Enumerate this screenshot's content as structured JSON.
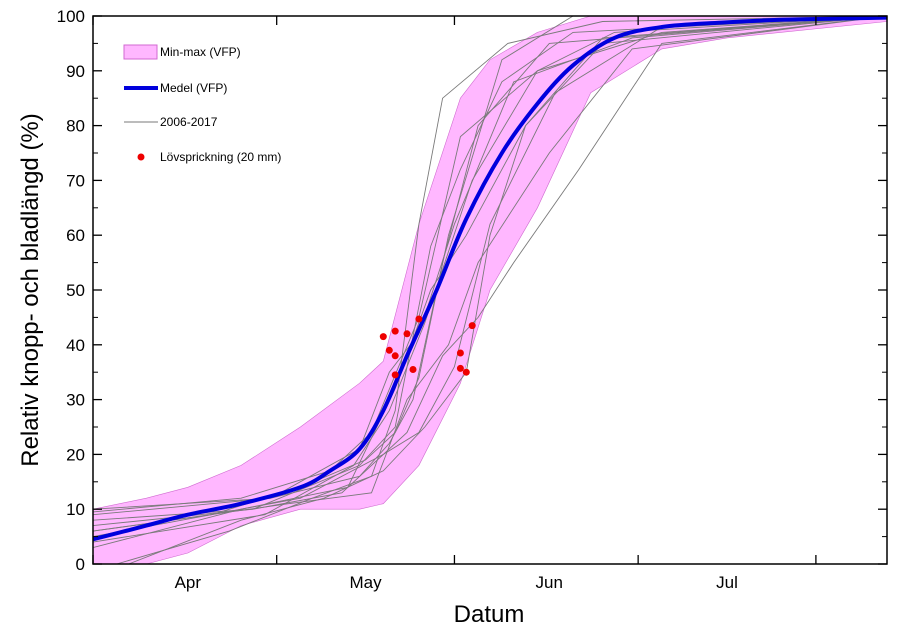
{
  "chart_data": {
    "type": "line",
    "xlabel": "Datum",
    "ylabel": "Relativ knopp- och bladlängd (%)",
    "ylim": [
      0,
      100
    ],
    "xlim": [
      "2000-03-16",
      "2000-07-28"
    ],
    "y_ticks": [
      "0",
      "10",
      "20",
      "30",
      "40",
      "50",
      "60",
      "70",
      "80",
      "90",
      "100"
    ],
    "x_month_ticks": [
      {
        "label": "Apr",
        "date": "2000-04-01"
      },
      {
        "label": "May",
        "date": "2000-05-01"
      },
      {
        "label": "Jun",
        "date": "2000-06-01"
      },
      {
        "label": "Jul",
        "date": "2000-07-01"
      }
    ],
    "x_major_tick_dates": [
      "2000-03-16",
      "2000-04-16",
      "2000-05-16",
      "2000-06-16",
      "2000-07-16"
    ],
    "grid": false,
    "legend_position": "top-left",
    "legend": [
      {
        "label": "Min-max (VFP)",
        "kind": "band"
      },
      {
        "label": "Medel (VFP)",
        "kind": "thick-line"
      },
      {
        "label": "2006-2017",
        "kind": "thin-line"
      },
      {
        "label": "Lövsprickning (20 mm)",
        "kind": "dot"
      }
    ],
    "colors": {
      "band_fill": "#ffb7ff",
      "band_edge": "#d06ad0",
      "mean_line": "#0000dd",
      "year_lines": "#7a7a7a",
      "dots": "#ee0000"
    },
    "band": {
      "x": [
        "2000-03-16",
        "2000-03-25",
        "2000-04-01",
        "2000-04-10",
        "2000-04-20",
        "2000-04-30",
        "2000-05-04",
        "2000-05-10",
        "2000-05-17",
        "2000-05-22",
        "2000-05-30",
        "2000-06-08",
        "2000-06-20",
        "2000-07-01",
        "2000-07-28"
      ],
      "upper": [
        10,
        12,
        14,
        18,
        25,
        33,
        37,
        62,
        85,
        92,
        97,
        100,
        100,
        100,
        100
      ],
      "lower": [
        0,
        0,
        2,
        7,
        10,
        10,
        11,
        18,
        33,
        50,
        65,
        86,
        94,
        96,
        99
      ]
    },
    "mean_series": {
      "name": "Medel (VFP)",
      "x": [
        "2000-03-16",
        "2000-03-25",
        "2000-04-01",
        "2000-04-10",
        "2000-04-20",
        "2000-04-25",
        "2000-04-30",
        "2000-05-04",
        "2000-05-08",
        "2000-05-13",
        "2000-05-18",
        "2000-05-24",
        "2000-05-30",
        "2000-06-05",
        "2000-06-12",
        "2000-06-20",
        "2000-06-30",
        "2000-07-10",
        "2000-07-28"
      ],
      "y": [
        4.5,
        7,
        9,
        11,
        14,
        17,
        21,
        28,
        38,
        50,
        63,
        75,
        84,
        91,
        96,
        98,
        98.8,
        99.3,
        99.7
      ]
    },
    "year_series": [
      {
        "x": [
          "2000-03-16",
          "2000-04-10",
          "2000-04-25",
          "2000-05-02",
          "2000-05-10",
          "2000-05-17",
          "2000-05-30",
          "2000-06-20",
          "2000-07-28"
        ],
        "y": [
          9.5,
          12,
          17,
          24,
          45,
          78,
          90,
          97,
          100
        ]
      },
      {
        "x": [
          "2000-03-16",
          "2000-04-05",
          "2000-04-20",
          "2000-05-01",
          "2000-05-06",
          "2000-05-10",
          "2000-05-15",
          "2000-05-24",
          "2000-06-05",
          "2000-06-15",
          "2000-07-28"
        ],
        "y": [
          6,
          9,
          14,
          19,
          24,
          34,
          60,
          92,
          100,
          100,
          100
        ]
      },
      {
        "x": [
          "2000-03-20",
          "2000-04-08",
          "2000-04-22",
          "2000-05-02",
          "2000-05-06",
          "2000-05-10",
          "2000-05-14",
          "2000-05-25",
          "2000-06-10",
          "2000-07-28"
        ],
        "y": [
          0,
          6,
          12,
          16,
          28,
          62,
          85,
          95,
          99,
          100
        ]
      },
      {
        "x": [
          "2000-03-16",
          "2000-04-10",
          "2000-04-28",
          "2000-05-06",
          "2000-05-12",
          "2000-05-18",
          "2000-05-28",
          "2000-06-10",
          "2000-07-28"
        ],
        "y": [
          3,
          10,
          14,
          32,
          50,
          60,
          80,
          95,
          100
        ]
      },
      {
        "x": [
          "2000-03-16",
          "2000-04-15",
          "2000-04-30",
          "2000-05-05",
          "2000-05-10",
          "2000-05-16",
          "2000-05-26",
          "2000-06-15",
          "2000-07-28"
        ],
        "y": [
          9,
          12,
          21,
          35,
          42,
          62,
          88,
          96,
          100
        ]
      },
      {
        "x": [
          "2000-03-16",
          "2000-04-12",
          "2000-04-27",
          "2000-05-08",
          "2000-05-14",
          "2000-05-20",
          "2000-05-26",
          "2000-06-06",
          "2000-06-20",
          "2000-07-28"
        ],
        "y": [
          7,
          10,
          13,
          24,
          38,
          45,
          55,
          72,
          95,
          100
        ]
      },
      {
        "x": [
          "2000-03-22",
          "2000-04-10",
          "2000-04-24",
          "2000-05-04",
          "2000-05-11",
          "2000-05-18",
          "2000-05-22",
          "2000-05-28",
          "2000-06-10",
          "2000-07-28"
        ],
        "y": [
          0,
          8,
          12,
          17,
          25,
          35,
          60,
          80,
          96,
          100
        ]
      },
      {
        "x": [
          "2000-03-16",
          "2000-04-15",
          "2000-04-30",
          "2000-05-05",
          "2000-05-09",
          "2000-05-14",
          "2000-05-20",
          "2000-06-01",
          "2000-07-28"
        ],
        "y": [
          10,
          12,
          16,
          22,
          30,
          55,
          80,
          95,
          100
        ]
      },
      {
        "x": [
          "2000-03-16",
          "2000-04-18",
          "2000-05-02",
          "2000-05-08",
          "2000-05-15",
          "2000-05-20",
          "2000-06-01",
          "2000-06-15",
          "2000-07-28"
        ],
        "y": [
          6,
          11,
          13,
          30,
          40,
          55,
          75,
          94,
          100
        ]
      },
      {
        "x": [
          "2000-03-16",
          "2000-04-12",
          "2000-04-30",
          "2000-05-06",
          "2000-05-12",
          "2000-05-17",
          "2000-05-24",
          "2000-06-05",
          "2000-07-28"
        ],
        "y": [
          8,
          10,
          18,
          25,
          58,
          72,
          88,
          97,
          100
        ]
      },
      {
        "x": [
          "2000-03-16",
          "2000-04-20",
          "2000-05-04",
          "2000-05-10",
          "2000-05-16",
          "2000-05-22",
          "2000-06-02",
          "2000-06-20",
          "2000-07-28"
        ],
        "y": [
          5,
          12,
          20,
          24,
          36,
          62,
          86,
          98,
          100
        ]
      },
      {
        "x": [
          "2000-03-16",
          "2000-04-14",
          "2000-04-29",
          "2000-05-05",
          "2000-05-11",
          "2000-05-19",
          "2000-05-30",
          "2000-06-12",
          "2000-07-28"
        ],
        "y": [
          4,
          9,
          18,
          28,
          44,
          70,
          90,
          97,
          100
        ]
      }
    ],
    "leafout_points": {
      "name": "Lövsprickning (20 mm)",
      "x": [
        "2000-05-04",
        "2000-05-05",
        "2000-05-06",
        "2000-05-06",
        "2000-05-06",
        "2000-05-08",
        "2000-05-09",
        "2000-05-10",
        "2000-05-17",
        "2000-05-17",
        "2000-05-18",
        "2000-05-19"
      ],
      "y": [
        41.5,
        39,
        42.5,
        38,
        34.5,
        42,
        35.5,
        44.7,
        38.5,
        35.7,
        35,
        43.5
      ]
    }
  }
}
